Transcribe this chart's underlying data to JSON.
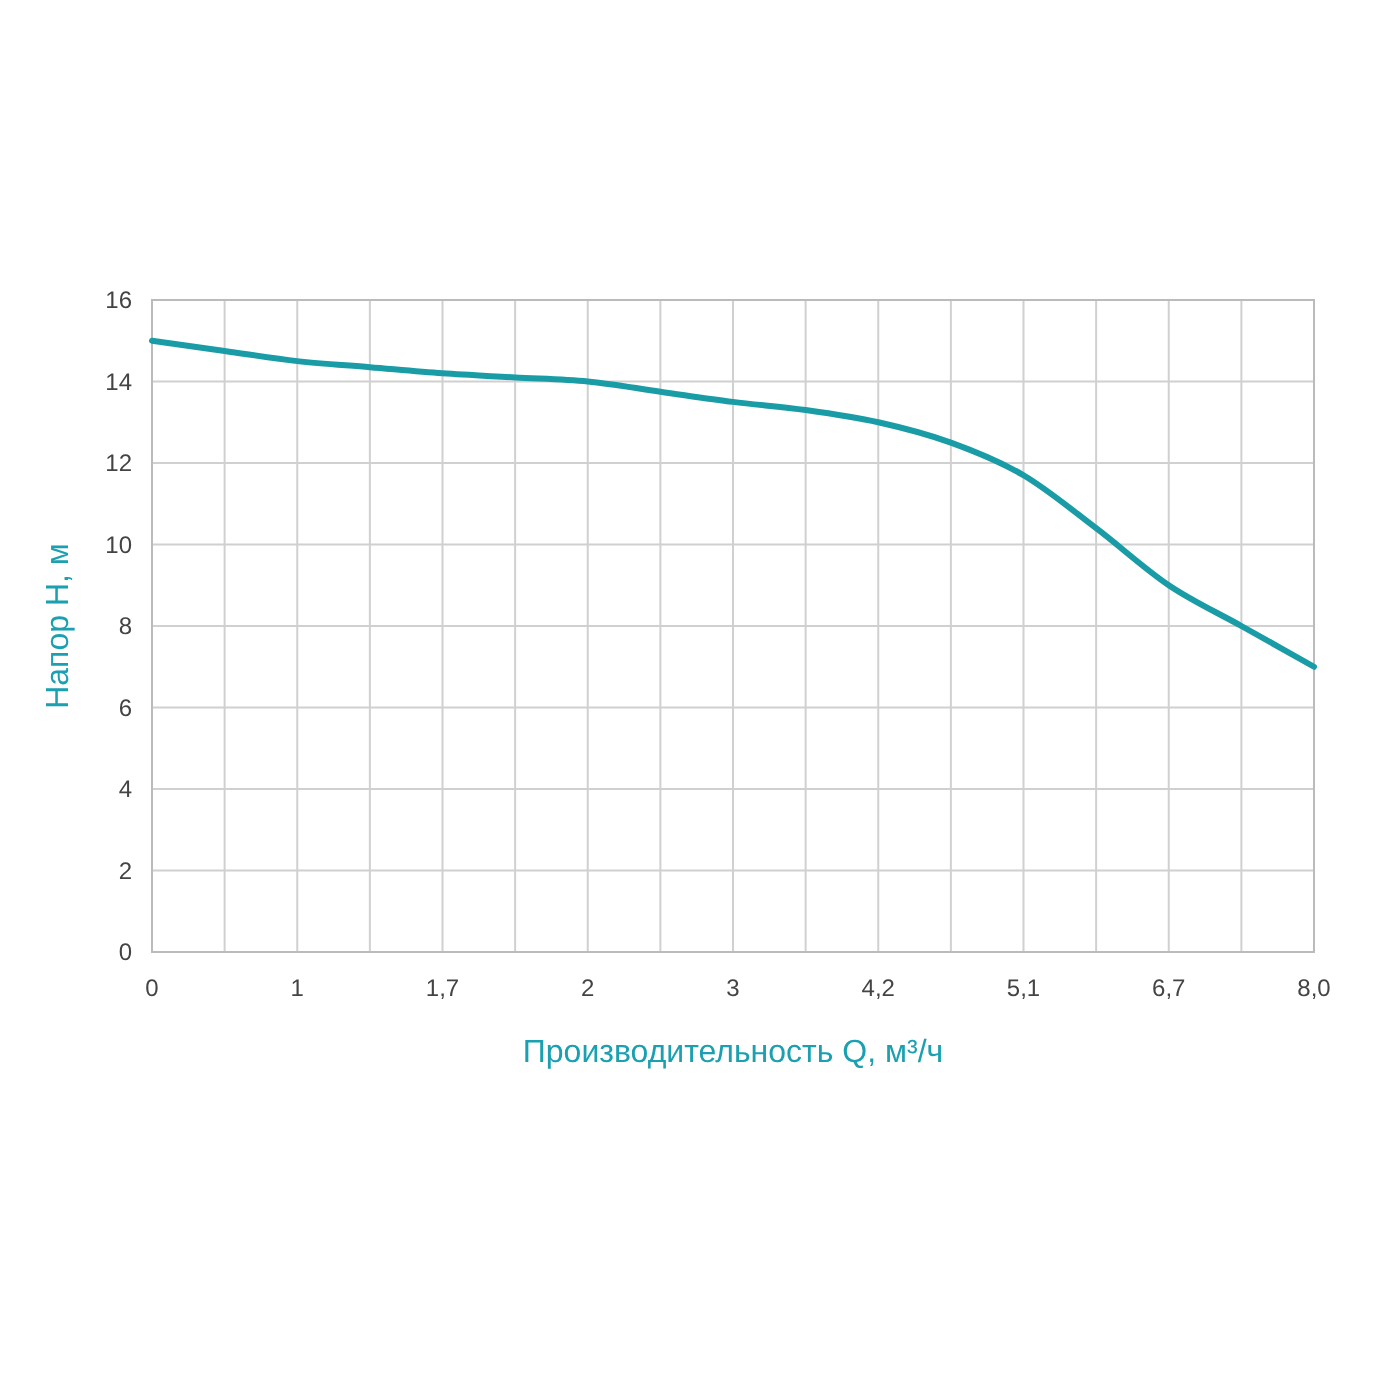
{
  "chart_data": {
    "type": "line",
    "xlabel": "Производительность Q, м³/ч",
    "ylabel": "Напор Н, м",
    "categories": [
      "0",
      null,
      "1",
      null,
      "1,7",
      null,
      "2",
      null,
      "3",
      null,
      "4,2",
      null,
      "5,1",
      null,
      "6,7",
      null,
      "8,0"
    ],
    "series": [
      {
        "color": "#1a9ca6",
        "values": [
          15,
          14.75,
          14.5,
          14.35,
          14.2,
          14.1,
          14.0,
          13.75,
          13.5,
          13.3,
          13.0,
          12.5,
          11.7,
          10.4,
          9.0,
          8.0,
          7.0
        ]
      }
    ],
    "ylim": [
      0,
      16
    ],
    "yticks": [
      0,
      2,
      4,
      6,
      8,
      10,
      12,
      14,
      16
    ],
    "grid": true,
    "marker": "none",
    "line_style": "solid"
  }
}
